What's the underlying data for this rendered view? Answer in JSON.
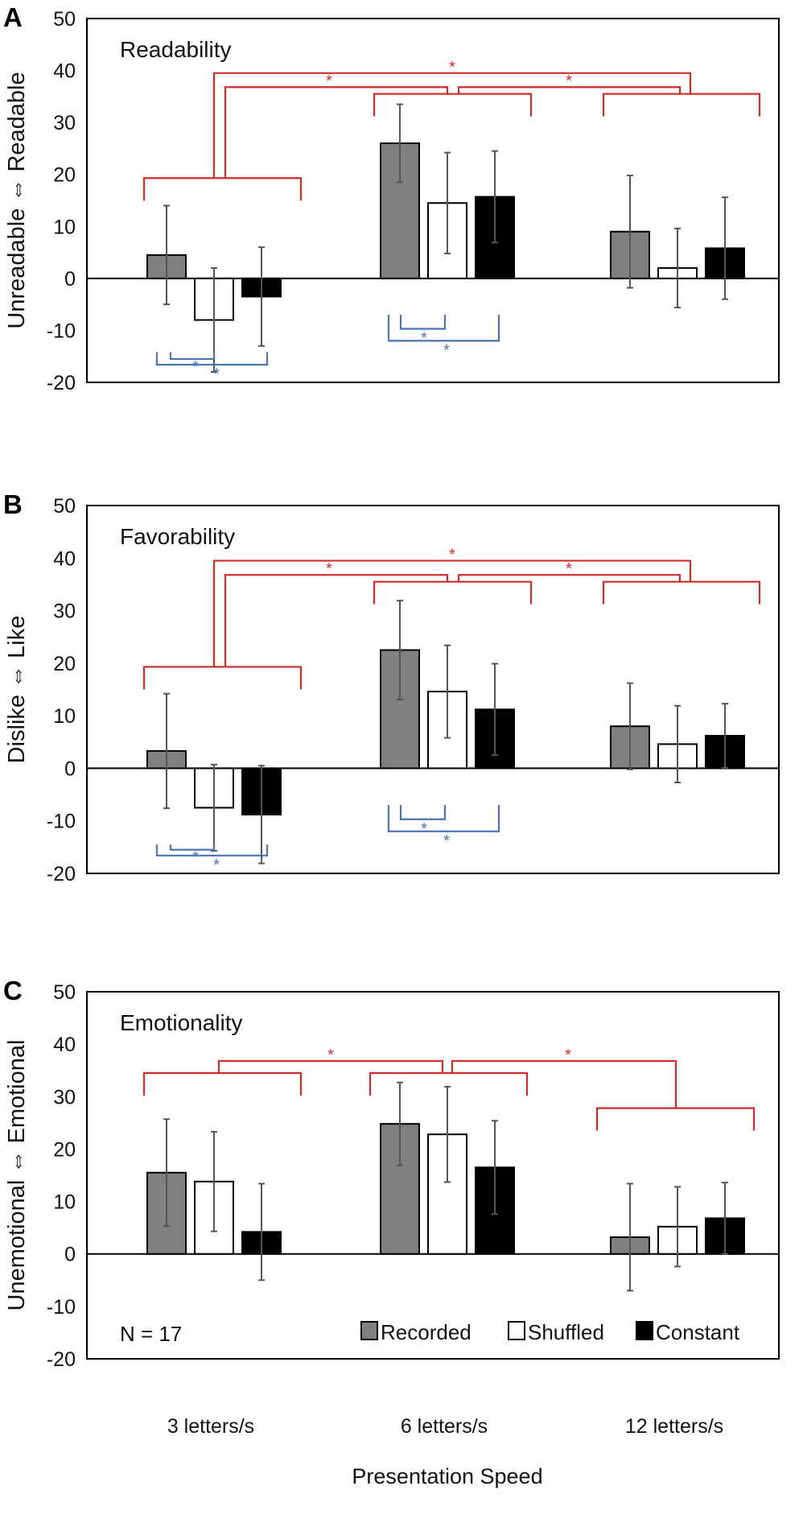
{
  "colors": {
    "recorded": "#808080",
    "shuffled": "#ffffff",
    "constant": "#000000",
    "red_bracket": "#d42a2a",
    "blue_bracket": "#4a73b8"
  },
  "x_axis_title": "Presentation Speed",
  "sample_size": "N = 17",
  "legend": [
    "Recorded",
    "Shuffled",
    "Constant"
  ],
  "chart_data": [
    {
      "type": "bar",
      "panel_label": "A",
      "title": "Readability",
      "ylabel": "Unreadable ⇔ Readable",
      "ylim": [
        -20,
        50
      ],
      "yticks": [
        -20,
        -10,
        0,
        10,
        20,
        30,
        40,
        50
      ],
      "categories": [
        "3 letters/s",
        "6 letters/s",
        "12 letters/s"
      ],
      "series": [
        {
          "name": "Recorded",
          "values": [
            4.5,
            26,
            9
          ],
          "errors": [
            9.5,
            7.5,
            10.8
          ]
        },
        {
          "name": "Shuffled",
          "values": [
            -8,
            14.5,
            2
          ],
          "errors": [
            10,
            9.7,
            7.6
          ]
        },
        {
          "name": "Constant",
          "values": [
            -3.5,
            15.7,
            5.8
          ],
          "errors": [
            9.5,
            8.8,
            9.8
          ]
        }
      ],
      "significance": {
        "speed_comparisons": [
          {
            "between": [
              "3 letters/s",
              "6 letters/s"
            ],
            "label": "*"
          },
          {
            "between": [
              "6 letters/s",
              "12 letters/s"
            ],
            "label": "*"
          },
          {
            "between": [
              "3 letters/s",
              "12 letters/s"
            ],
            "label": "*"
          }
        ],
        "condition_comparisons": [
          {
            "category": "3 letters/s",
            "between": [
              "Recorded",
              "Shuffled"
            ],
            "label": "*"
          },
          {
            "category": "3 letters/s",
            "between": [
              "Recorded",
              "Constant"
            ],
            "label": "*"
          },
          {
            "category": "6 letters/s",
            "between": [
              "Recorded",
              "Shuffled"
            ],
            "label": "*"
          },
          {
            "category": "6 letters/s",
            "between": [
              "Recorded",
              "Constant"
            ],
            "label": "*"
          }
        ]
      }
    },
    {
      "type": "bar",
      "panel_label": "B",
      "title": "Favorability",
      "ylabel": "Dislike ⇔ Like",
      "ylim": [
        -20,
        50
      ],
      "yticks": [
        -20,
        -10,
        0,
        10,
        20,
        30,
        40,
        50
      ],
      "categories": [
        "3 letters/s",
        "6 letters/s",
        "12 letters/s"
      ],
      "series": [
        {
          "name": "Recorded",
          "values": [
            3.3,
            22.5,
            8
          ],
          "errors": [
            10.9,
            9.4,
            8.2
          ]
        },
        {
          "name": "Shuffled",
          "values": [
            -7.5,
            14.6,
            4.6
          ],
          "errors": [
            8.2,
            8.8,
            7.3
          ]
        },
        {
          "name": "Constant",
          "values": [
            -8.8,
            11.2,
            6.2
          ],
          "errors": [
            9.3,
            8.7,
            6.1
          ]
        }
      ],
      "significance": {
        "speed_comparisons": [
          {
            "between": [
              "3 letters/s",
              "6 letters/s"
            ],
            "label": "*"
          },
          {
            "between": [
              "6 letters/s",
              "12 letters/s"
            ],
            "label": "*"
          },
          {
            "between": [
              "3 letters/s",
              "12 letters/s"
            ],
            "label": "*"
          }
        ],
        "condition_comparisons": [
          {
            "category": "3 letters/s",
            "between": [
              "Recorded",
              "Shuffled"
            ],
            "label": "*"
          },
          {
            "category": "3 letters/s",
            "between": [
              "Recorded",
              "Constant"
            ],
            "label": "*"
          },
          {
            "category": "6 letters/s",
            "between": [
              "Recorded",
              "Shuffled"
            ],
            "label": "*"
          },
          {
            "category": "6 letters/s",
            "between": [
              "Recorded",
              "Constant"
            ],
            "label": "*"
          }
        ]
      }
    },
    {
      "type": "bar",
      "panel_label": "C",
      "title": "Emotionality",
      "ylabel": "Unemotional ⇔ Emotional",
      "ylim": [
        -20,
        50
      ],
      "yticks": [
        -20,
        -10,
        0,
        10,
        20,
        30,
        40,
        50
      ],
      "categories": [
        "3 letters/s",
        "6 letters/s",
        "12 letters/s"
      ],
      "series": [
        {
          "name": "Recorded",
          "values": [
            15.5,
            24.8,
            3.2
          ],
          "errors": [
            10.2,
            7.9,
            10.2
          ]
        },
        {
          "name": "Shuffled",
          "values": [
            13.8,
            22.8,
            5.2
          ],
          "errors": [
            9.5,
            9.1,
            7.6
          ]
        },
        {
          "name": "Constant",
          "values": [
            4.2,
            16.5,
            6.8
          ],
          "errors": [
            9.2,
            8.9,
            6.8
          ]
        }
      ],
      "significance": {
        "speed_comparisons": [
          {
            "between": [
              "3 letters/s",
              "6 letters/s"
            ],
            "label": "*"
          },
          {
            "between": [
              "6 letters/s",
              "12 letters/s"
            ],
            "label": "*"
          }
        ],
        "condition_comparisons": []
      }
    }
  ]
}
